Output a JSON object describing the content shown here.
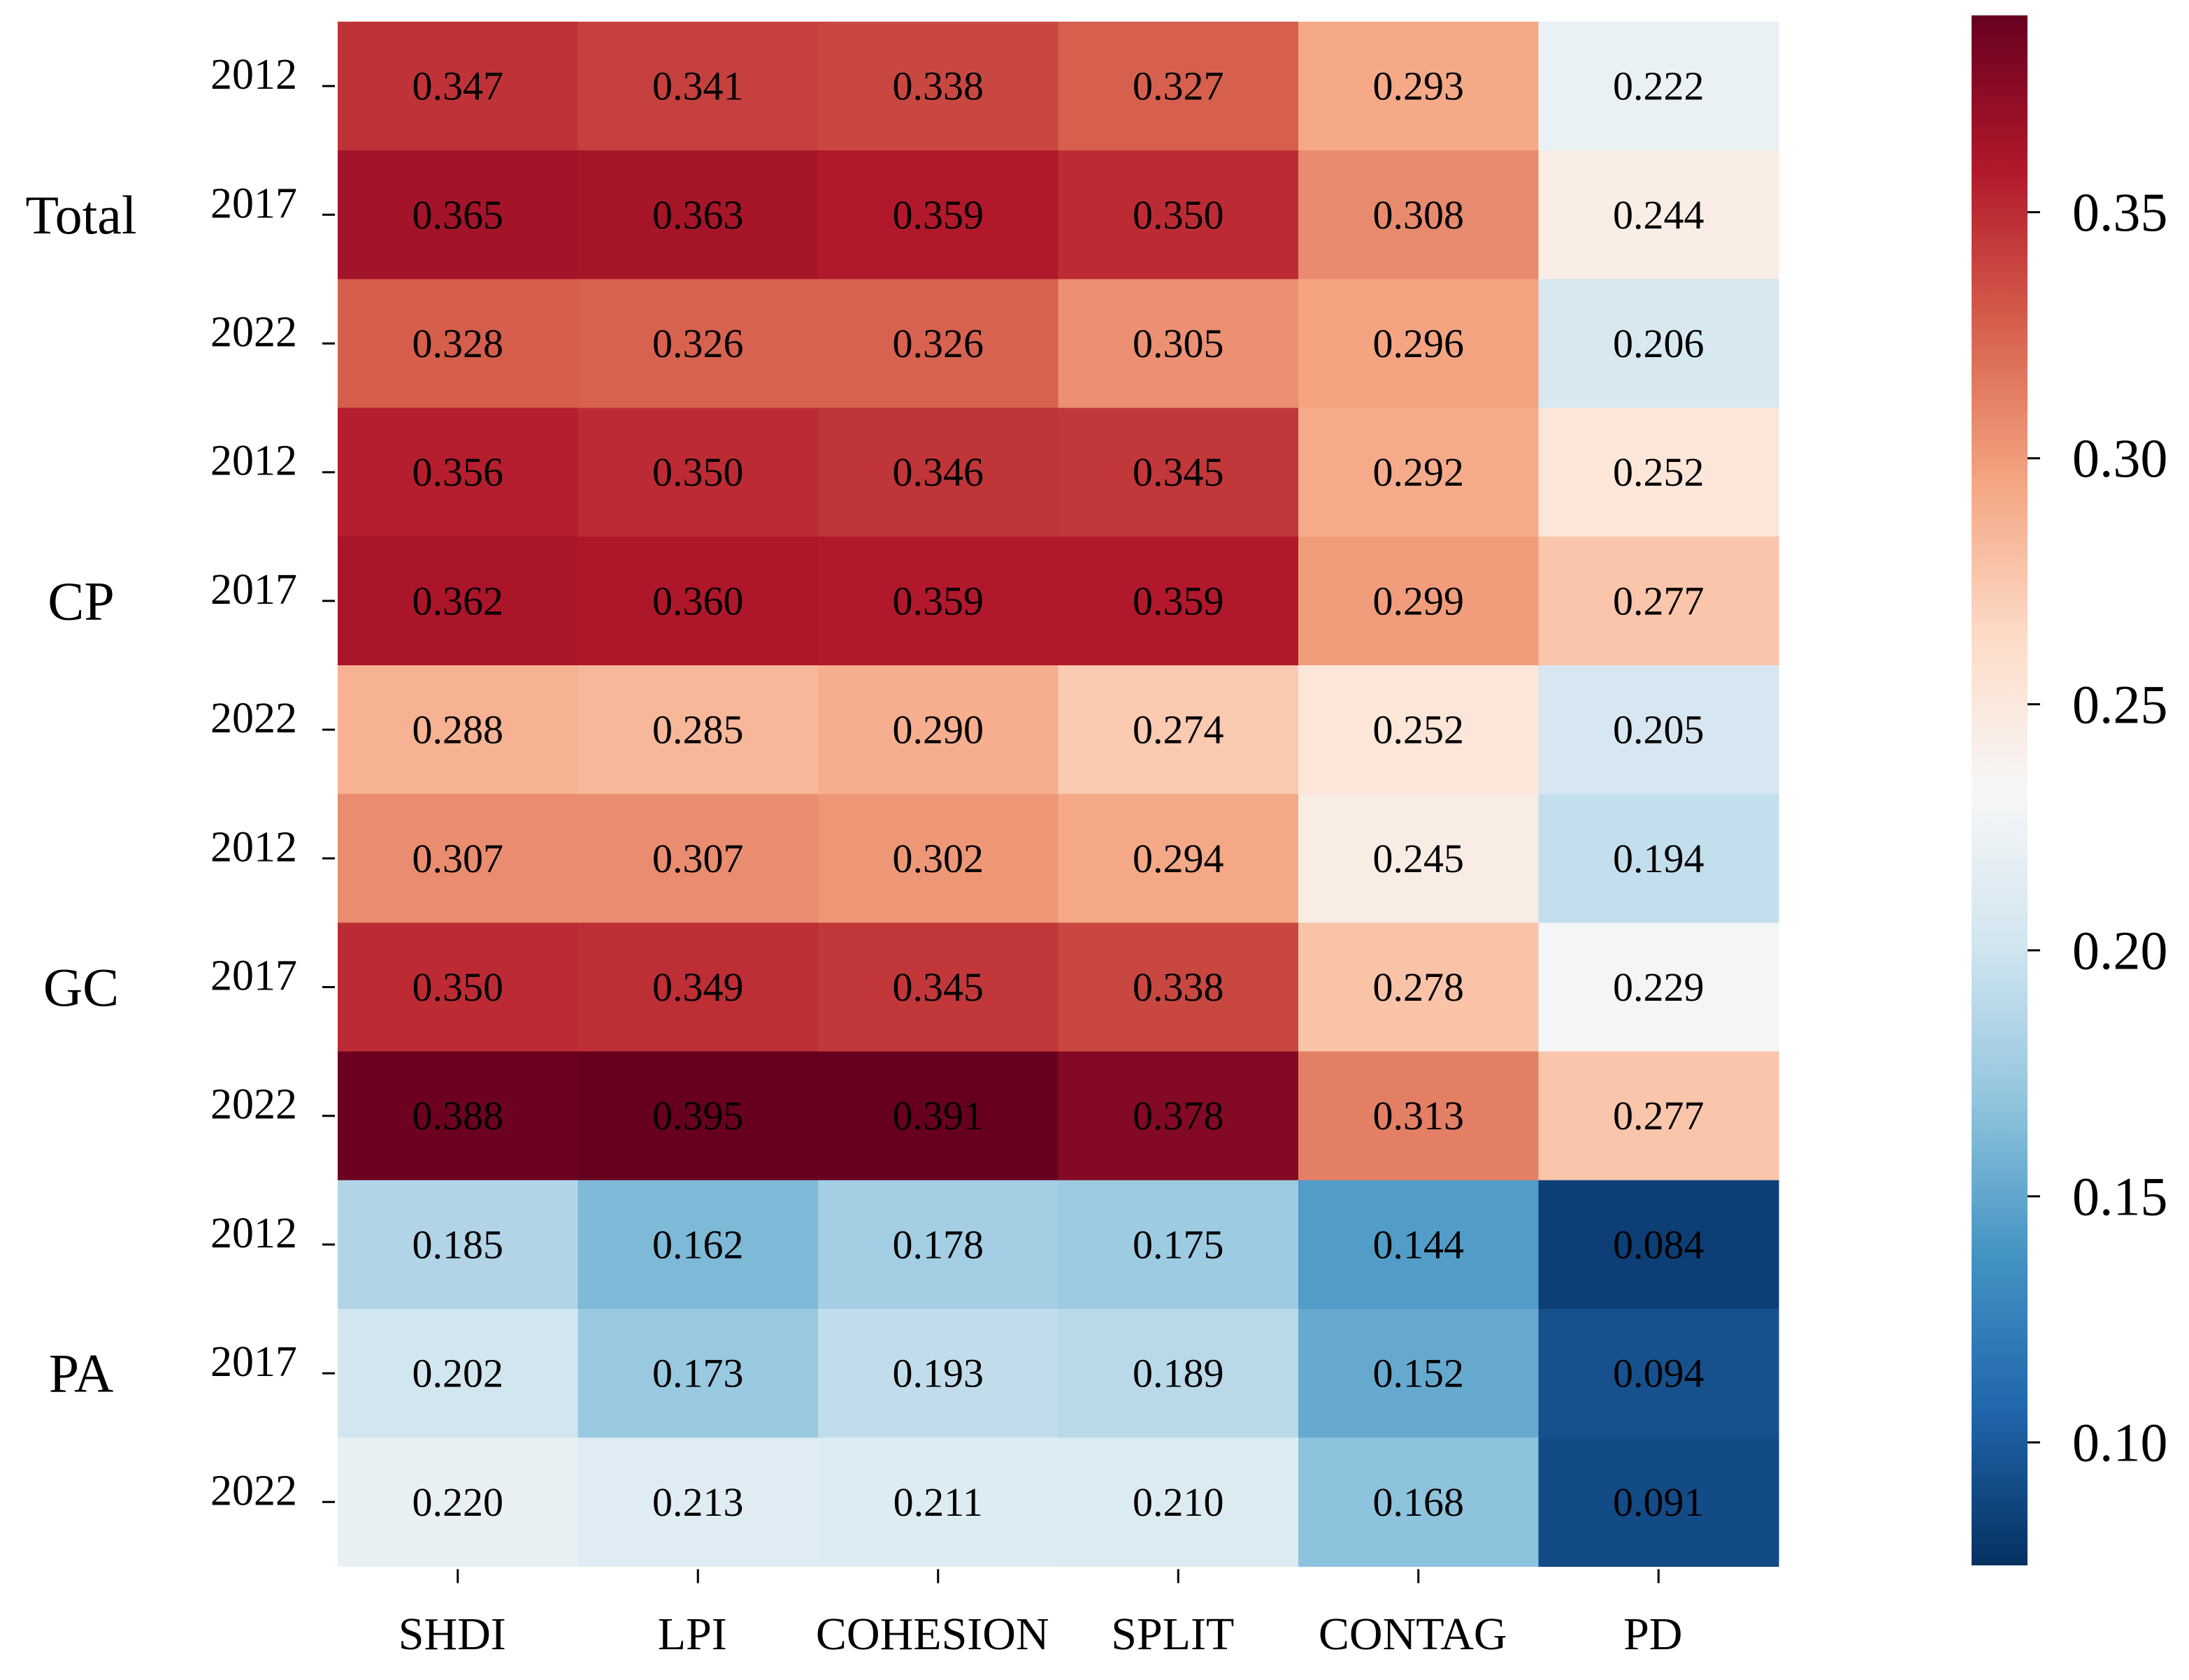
{
  "chart_data": {
    "type": "heatmap",
    "title": "",
    "xlabel": "",
    "ylabel": "",
    "columns": [
      "SHDI",
      "LPI",
      "COHESION",
      "SPLIT",
      "CONTAG",
      "PD"
    ],
    "row_groups": [
      {
        "name": "Total",
        "years": [
          "2012",
          "2017",
          "2022"
        ]
      },
      {
        "name": "CP",
        "years": [
          "2012",
          "2017",
          "2022"
        ]
      },
      {
        "name": "GC",
        "years": [
          "2012",
          "2017",
          "2022"
        ]
      },
      {
        "name": "PA",
        "years": [
          "2012",
          "2017",
          "2022"
        ]
      }
    ],
    "values": [
      [
        0.347,
        0.341,
        0.338,
        0.327,
        0.293,
        0.222
      ],
      [
        0.365,
        0.363,
        0.359,
        0.35,
        0.308,
        0.244
      ],
      [
        0.328,
        0.326,
        0.326,
        0.305,
        0.296,
        0.206
      ],
      [
        0.356,
        0.35,
        0.346,
        0.345,
        0.292,
        0.252
      ],
      [
        0.362,
        0.36,
        0.359,
        0.359,
        0.299,
        0.277
      ],
      [
        0.288,
        0.285,
        0.29,
        0.274,
        0.252,
        0.205
      ],
      [
        0.307,
        0.307,
        0.302,
        0.294,
        0.245,
        0.194
      ],
      [
        0.35,
        0.349,
        0.345,
        0.338,
        0.278,
        0.229
      ],
      [
        0.388,
        0.395,
        0.391,
        0.378,
        0.313,
        0.277
      ],
      [
        0.185,
        0.162,
        0.178,
        0.175,
        0.144,
        0.084
      ],
      [
        0.202,
        0.173,
        0.193,
        0.189,
        0.152,
        0.094
      ],
      [
        0.22,
        0.213,
        0.211,
        0.21,
        0.168,
        0.091
      ]
    ],
    "value_format": "0.000",
    "colormap": "RdBu_r",
    "vmin": 0.075,
    "vmax": 0.39,
    "colorbar": {
      "ticks": [
        0.1,
        0.15,
        0.2,
        0.25,
        0.3,
        0.35
      ],
      "tick_labels": [
        "0.10",
        "0.15",
        "0.20",
        "0.25",
        "0.30",
        "0.35"
      ]
    },
    "colors": [
      "#053061",
      "#2166ac",
      "#4393c3",
      "#92c5de",
      "#d1e5f0",
      "#f7f7f7",
      "#fddbc7",
      "#f4a582",
      "#d6604d",
      "#b2182b",
      "#67001f"
    ]
  }
}
